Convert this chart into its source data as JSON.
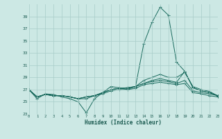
{
  "xlabel": "Humidex (Indice chaleur)",
  "background_color": "#cce8e4",
  "grid_color": "#a8ccc8",
  "line_color": "#1a6b5e",
  "xlim": [
    0,
    23
  ],
  "ylim": [
    23,
    41
  ],
  "yticks": [
    23,
    25,
    27,
    29,
    31,
    33,
    35,
    37,
    39
  ],
  "xticks": [
    0,
    1,
    2,
    3,
    4,
    5,
    6,
    7,
    8,
    9,
    10,
    11,
    12,
    13,
    14,
    15,
    16,
    17,
    18,
    19,
    20,
    21,
    22,
    23
  ],
  "series": [
    [
      27.0,
      25.5,
      26.3,
      26.2,
      25.8,
      25.5,
      25.0,
      23.2,
      25.5,
      26.5,
      27.5,
      27.3,
      27.0,
      27.5,
      34.5,
      38.0,
      40.5,
      39.2,
      31.5,
      30.0,
      27.3,
      26.8,
      26.5,
      26.0
    ],
    [
      27.0,
      25.8,
      26.2,
      26.0,
      26.0,
      25.8,
      25.5,
      25.5,
      26.0,
      26.5,
      27.0,
      27.2,
      27.2,
      27.5,
      28.5,
      29.0,
      29.5,
      29.0,
      29.0,
      29.8,
      27.5,
      27.0,
      26.7,
      26.0
    ],
    [
      27.0,
      25.8,
      26.2,
      26.0,
      26.0,
      25.8,
      25.5,
      25.8,
      26.0,
      26.5,
      27.0,
      27.2,
      27.3,
      27.5,
      28.0,
      28.5,
      28.8,
      28.5,
      28.2,
      30.0,
      27.3,
      26.8,
      26.5,
      26.0
    ],
    [
      27.0,
      25.8,
      26.2,
      26.0,
      26.0,
      25.8,
      25.5,
      25.8,
      26.0,
      26.5,
      27.0,
      27.2,
      27.3,
      27.5,
      28.0,
      28.3,
      28.5,
      28.3,
      28.0,
      28.5,
      26.8,
      26.5,
      26.3,
      26.0
    ],
    [
      27.0,
      25.8,
      26.2,
      26.0,
      26.0,
      25.8,
      25.5,
      25.8,
      26.0,
      26.3,
      26.8,
      27.0,
      27.0,
      27.2,
      27.8,
      28.0,
      28.2,
      28.0,
      27.8,
      28.0,
      26.5,
      26.3,
      26.0,
      25.8
    ]
  ]
}
